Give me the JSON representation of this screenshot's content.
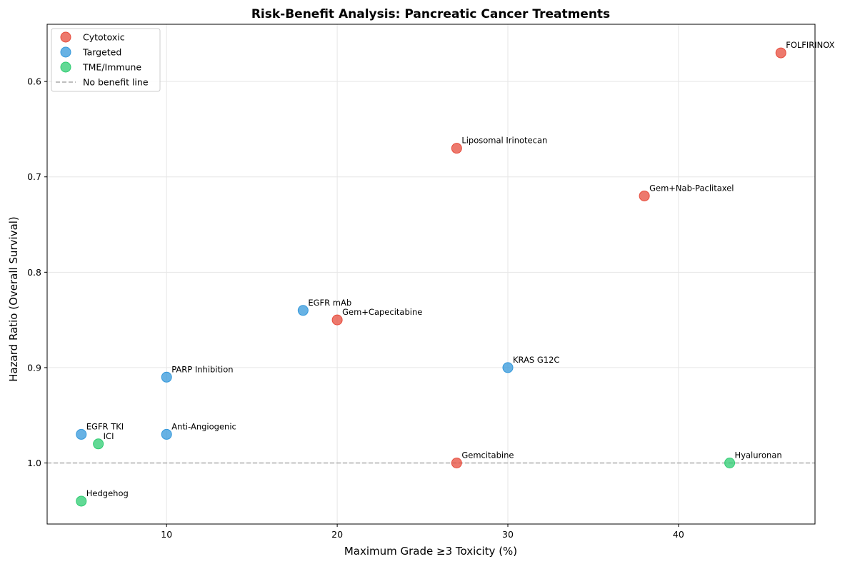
{
  "chart_data": {
    "type": "scatter",
    "title": "Risk-Benefit Analysis: Pancreatic Cancer Treatments",
    "xlabel": "Maximum Grade ≥3 Toxicity (%)",
    "ylabel": "Hazard Ratio (Overall Survival)",
    "xlim": [
      3,
      48
    ],
    "ylim": [
      0.54,
      1.064
    ],
    "y_inverted": true,
    "x_ticks": [
      10,
      20,
      30,
      40
    ],
    "y_ticks": [
      0.6,
      0.7,
      0.8,
      0.9,
      1.0
    ],
    "y_tick_labels": [
      "0.6",
      "0.7",
      "0.8",
      "0.9",
      "1.0"
    ],
    "grid": true,
    "legend_position": "top-left",
    "series": [
      {
        "name": "Cytotoxic",
        "color": "#e74c3c",
        "points": [
          {
            "label": "FOLFIRINOX",
            "x": 46,
            "y": 0.57
          },
          {
            "label": "Liposomal Irinotecan",
            "x": 27,
            "y": 0.67
          },
          {
            "label": "Gem+Nab-Paclitaxel",
            "x": 38,
            "y": 0.72
          },
          {
            "label": "Gem+Capecitabine",
            "x": 20,
            "y": 0.85
          },
          {
            "label": "Gemcitabine",
            "x": 27,
            "y": 1.0
          }
        ]
      },
      {
        "name": "Targeted",
        "color": "#3498db",
        "points": [
          {
            "label": "EGFR mAb",
            "x": 18,
            "y": 0.84
          },
          {
            "label": "KRAS G12C",
            "x": 30,
            "y": 0.9
          },
          {
            "label": "PARP Inhibition",
            "x": 10,
            "y": 0.91
          },
          {
            "label": "EGFR TKI",
            "x": 5,
            "y": 0.97
          },
          {
            "label": "Anti-Angiogenic",
            "x": 10,
            "y": 0.97
          }
        ]
      },
      {
        "name": "TME/Immune",
        "color": "#2ecc71",
        "points": [
          {
            "label": "ICI",
            "x": 6,
            "y": 0.98
          },
          {
            "label": "Hyaluronan",
            "x": 43,
            "y": 1.0
          },
          {
            "label": "Hedgehog",
            "x": 5,
            "y": 1.04
          }
        ]
      }
    ],
    "reference_line": {
      "name": "No benefit line",
      "y": 1.0,
      "color": "#aaaaaa"
    }
  }
}
